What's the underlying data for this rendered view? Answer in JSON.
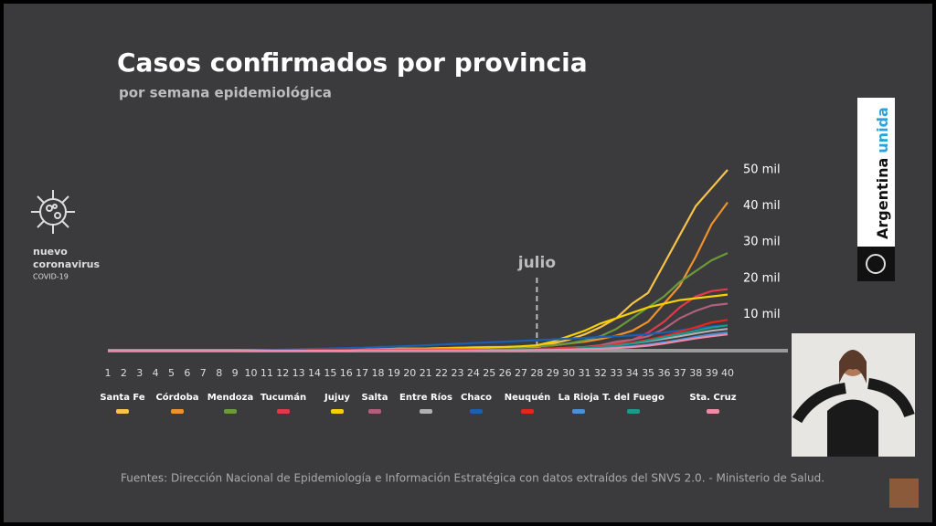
{
  "chart_data": {
    "type": "line",
    "title": "Casos confirmados por provincia",
    "subtitle": "por semana epidemiológica",
    "annotation": "julio",
    "annotation_x": 28,
    "x": [
      1,
      2,
      3,
      4,
      5,
      6,
      7,
      8,
      9,
      10,
      11,
      12,
      13,
      14,
      15,
      16,
      17,
      18,
      19,
      20,
      21,
      22,
      23,
      24,
      25,
      26,
      27,
      28,
      29,
      30,
      31,
      32,
      33,
      34,
      35,
      36,
      37,
      38,
      39,
      40
    ],
    "xlim": [
      1,
      40
    ],
    "ylim": [
      0,
      50000
    ],
    "yticks": [
      {
        "value": 10000,
        "label": "10 mil"
      },
      {
        "value": 20000,
        "label": "20 mil"
      },
      {
        "value": 30000,
        "label": "30 mil"
      },
      {
        "value": 40000,
        "label": "40 mil"
      },
      {
        "value": 50000,
        "label": "50 mil"
      }
    ],
    "series": [
      {
        "name": "Santa Fe",
        "color": "#f7c34a",
        "values": [
          0,
          0,
          0,
          0,
          0,
          0,
          0,
          0,
          0,
          0,
          100,
          100,
          100,
          200,
          200,
          300,
          300,
          400,
          500,
          600,
          600,
          700,
          800,
          900,
          900,
          1000,
          1000,
          1000,
          2000,
          3000,
          4500,
          6500,
          9000,
          13000,
          16000,
          24000,
          32000,
          40000,
          45000,
          50000
        ]
      },
      {
        "name": "Córdoba",
        "color": "#f0922b",
        "values": [
          0,
          0,
          0,
          0,
          0,
          0,
          0,
          0,
          0,
          0,
          100,
          100,
          100,
          200,
          200,
          300,
          300,
          400,
          500,
          600,
          600,
          700,
          800,
          900,
          1000,
          1000,
          1100,
          1200,
          1500,
          2000,
          2500,
          3200,
          4200,
          5500,
          8000,
          13000,
          18000,
          26000,
          35000,
          41000
        ]
      },
      {
        "name": "Mendoza",
        "color": "#6a9a3a",
        "values": [
          0,
          0,
          0,
          0,
          0,
          0,
          0,
          0,
          0,
          0,
          100,
          100,
          100,
          200,
          200,
          300,
          300,
          400,
          500,
          500,
          500,
          500,
          600,
          700,
          800,
          900,
          1000,
          1200,
          1500,
          2000,
          2800,
          4000,
          6000,
          9000,
          12000,
          15000,
          19000,
          22000,
          25000,
          27000
        ]
      },
      {
        "name": "Tucumán",
        "color": "#e03a4a",
        "values": [
          0,
          0,
          0,
          0,
          0,
          0,
          0,
          0,
          0,
          0,
          100,
          100,
          100,
          200,
          200,
          200,
          200,
          300,
          300,
          300,
          300,
          300,
          300,
          300,
          300,
          300,
          400,
          400,
          500,
          600,
          800,
          1200,
          2000,
          3000,
          5000,
          8000,
          12000,
          15000,
          16500,
          17000
        ]
      },
      {
        "name": "Jujuy",
        "color": "#f5d000",
        "values": [
          0,
          0,
          0,
          0,
          0,
          0,
          0,
          0,
          0,
          0,
          100,
          100,
          100,
          200,
          200,
          300,
          300,
          400,
          500,
          500,
          500,
          600,
          700,
          800,
          900,
          1000,
          1200,
          1500,
          2500,
          4000,
          5500,
          7500,
          9000,
          10500,
          12000,
          13000,
          14000,
          14500,
          15000,
          15500
        ]
      },
      {
        "name": "Salta",
        "color": "#b0607a",
        "values": [
          0,
          0,
          0,
          0,
          0,
          0,
          0,
          0,
          0,
          0,
          100,
          100,
          100,
          200,
          200,
          200,
          200,
          300,
          300,
          300,
          300,
          300,
          300,
          300,
          300,
          300,
          400,
          500,
          600,
          800,
          1000,
          1500,
          2500,
          3000,
          4000,
          6000,
          9000,
          11000,
          12500,
          13000
        ]
      },
      {
        "name": "Entre Ríos",
        "color": "#b0b0b0",
        "values": [
          0,
          0,
          0,
          0,
          0,
          0,
          0,
          0,
          0,
          0,
          100,
          100,
          100,
          200,
          200,
          200,
          200,
          300,
          300,
          300,
          300,
          300,
          300,
          300,
          400,
          400,
          500,
          500,
          600,
          700,
          900,
          1200,
          1600,
          2000,
          2600,
          3300,
          4000,
          4800,
          5500,
          6000
        ]
      },
      {
        "name": "Chaco",
        "color": "#1a5fb0",
        "values": [
          0,
          0,
          0,
          0,
          0,
          0,
          0,
          0,
          0,
          100,
          200,
          300,
          400,
          500,
          600,
          700,
          800,
          1000,
          1100,
          1300,
          1500,
          1700,
          1900,
          2100,
          2300,
          2500,
          2700,
          2900,
          3100,
          3300,
          3500,
          3800,
          4000,
          4200,
          4600,
          5000,
          5600,
          6200,
          6700,
          7000
        ]
      },
      {
        "name": "Neuquén",
        "color": "#e8241e",
        "values": [
          0,
          0,
          0,
          0,
          0,
          0,
          0,
          0,
          0,
          0,
          100,
          100,
          100,
          200,
          200,
          200,
          200,
          300,
          300,
          300,
          300,
          300,
          300,
          300,
          300,
          400,
          400,
          500,
          600,
          700,
          900,
          1200,
          1600,
          2200,
          3000,
          4000,
          5200,
          6500,
          7800,
          8500
        ]
      },
      {
        "name": "La Rioja",
        "color": "#4a90d9",
        "values": [
          0,
          0,
          0,
          0,
          0,
          0,
          0,
          0,
          0,
          0,
          0,
          0,
          0,
          0,
          0,
          0,
          100,
          100,
          100,
          100,
          100,
          100,
          100,
          100,
          100,
          100,
          200,
          200,
          300,
          400,
          500,
          700,
          900,
          1200,
          1700,
          2300,
          3000,
          3800,
          4500,
          5000
        ]
      },
      {
        "name": "T. del Fuego",
        "color": "#1a9a8a",
        "values": [
          0,
          0,
          0,
          0,
          0,
          0,
          0,
          0,
          0,
          0,
          0,
          0,
          0,
          0,
          0,
          0,
          100,
          100,
          100,
          100,
          100,
          100,
          100,
          100,
          200,
          200,
          300,
          300,
          400,
          500,
          700,
          1000,
          1400,
          2000,
          2800,
          3700,
          4600,
          5500,
          6400,
          7000
        ]
      },
      {
        "name": "Sta. Cruz",
        "color": "#f08aa8",
        "values": [
          0,
          0,
          0,
          0,
          0,
          0,
          0,
          0,
          0,
          0,
          0,
          0,
          0,
          0,
          0,
          0,
          100,
          100,
          100,
          100,
          100,
          100,
          100,
          100,
          100,
          100,
          100,
          200,
          200,
          300,
          400,
          500,
          700,
          1000,
          1400,
          2000,
          2700,
          3400,
          4000,
          4500
        ]
      }
    ]
  },
  "side": {
    "virus_label": [
      "nuevo",
      "coronavirus"
    ],
    "virus_sub": "COVID-19",
    "brand": [
      "Argentina",
      "unida"
    ]
  },
  "footer": "Fuentes: Dirección Nacional de Epidemiología e Información Estratégica con datos extraídos del SNVS 2.0. - Ministerio de Salud."
}
